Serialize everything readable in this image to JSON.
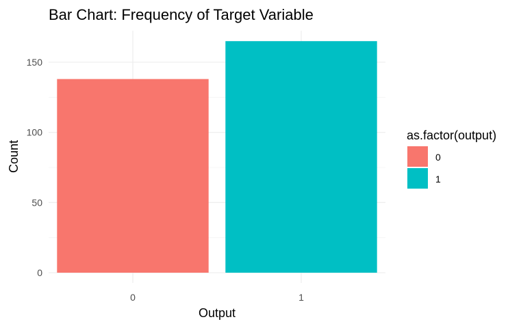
{
  "chart_data": {
    "type": "bar",
    "title": "Bar Chart: Frequency of Target Variable",
    "xlabel": "Output",
    "ylabel": "Count",
    "categories": [
      "0",
      "1"
    ],
    "values": [
      138,
      165
    ],
    "colors": [
      "#F8766D",
      "#00BFC4"
    ],
    "ylim": [
      0,
      172
    ],
    "yticks": [
      0,
      50,
      100,
      150
    ],
    "grid": true,
    "legend": {
      "title": "as.factor(output)",
      "position": "right",
      "entries": [
        {
          "label": "0",
          "color": "#F8766D"
        },
        {
          "label": "1",
          "color": "#00BFC4"
        }
      ]
    }
  }
}
